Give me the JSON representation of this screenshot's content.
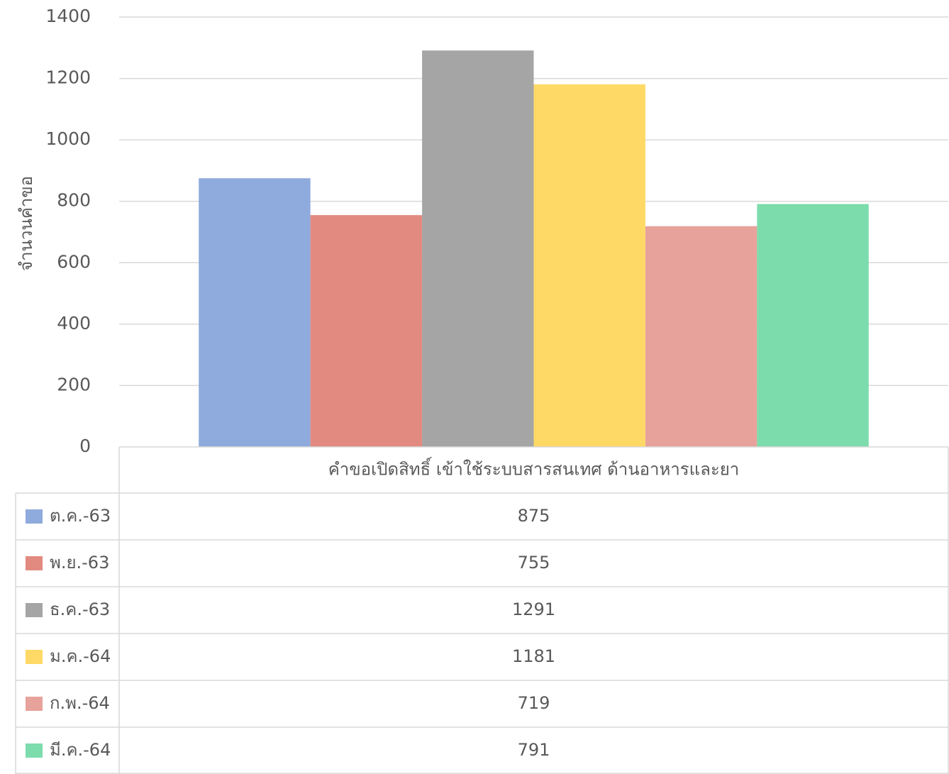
{
  "chart_data": {
    "type": "bar",
    "y_label": "จำนวนคำขอ",
    "categories": [
      "คำขอเปิดสิทธิ์ เข้าใช้ระบบสารสนเทศ ด้านอาหารและยา"
    ],
    "series": [
      {
        "name": "ต.ค.-63",
        "color": "#8faadc",
        "values": [
          875
        ]
      },
      {
        "name": "พ.ย.-63",
        "color": "#e28a80",
        "values": [
          755
        ]
      },
      {
        "name": "ธ.ค.-63",
        "color": "#a5a5a5",
        "values": [
          1291
        ]
      },
      {
        "name": "ม.ค.-64",
        "color": "#ffd966",
        "values": [
          1181
        ]
      },
      {
        "name": "ก.พ.-64",
        "color": "#e8a29c",
        "values": [
          719
        ]
      },
      {
        "name": "มี.ค.-64",
        "color": "#7ddcac",
        "values": [
          791
        ]
      }
    ],
    "ylim": [
      0,
      1400
    ],
    "yticks": [
      0,
      200,
      400,
      600,
      800,
      1000,
      1200,
      1400
    ],
    "grid": true
  }
}
